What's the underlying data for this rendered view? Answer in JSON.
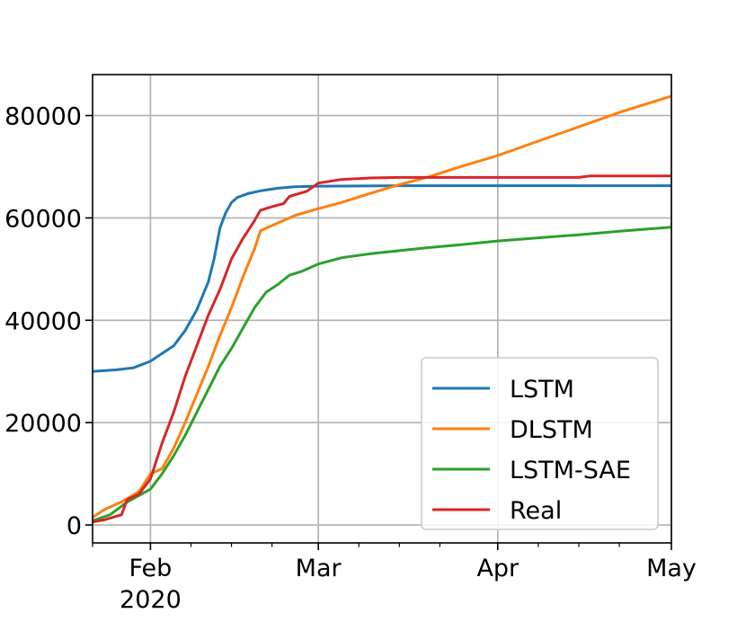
{
  "chart_data": {
    "type": "line",
    "title": "",
    "xlabel": "",
    "ylabel": "",
    "x_range": [
      "2020-01-22",
      "2020-05-01"
    ],
    "ylim": [
      -3500,
      88000
    ],
    "grid": true,
    "legend_position": "lower-right",
    "x_ticks": [
      {
        "date": "2020-02-01",
        "label": "Feb",
        "sublabel": "2020"
      },
      {
        "date": "2020-03-01",
        "label": "Mar"
      },
      {
        "date": "2020-04-01",
        "label": "Apr"
      },
      {
        "date": "2020-05-01",
        "label": "May"
      }
    ],
    "x_minor_ticks": [
      "2020-01-22",
      "2020-02-08",
      "2020-02-15",
      "2020-02-22",
      "2020-03-08",
      "2020-03-15",
      "2020-03-22",
      "2020-04-08",
      "2020-04-15",
      "2020-04-22"
    ],
    "y_ticks": [
      {
        "value": 0,
        "label": "0"
      },
      {
        "value": 20000,
        "label": "20000"
      },
      {
        "value": 40000,
        "label": "40000"
      },
      {
        "value": 60000,
        "label": "60000"
      },
      {
        "value": 80000,
        "label": "80000"
      }
    ],
    "series": [
      {
        "name": "LSTM",
        "color": "#1f77b4",
        "points": [
          [
            "2020-01-22",
            30000
          ],
          [
            "2020-01-26",
            30300
          ],
          [
            "2020-01-29",
            30700
          ],
          [
            "2020-02-01",
            32000
          ],
          [
            "2020-02-03",
            33500
          ],
          [
            "2020-02-05",
            35000
          ],
          [
            "2020-02-07",
            38000
          ],
          [
            "2020-02-09",
            42000
          ],
          [
            "2020-02-11",
            47500
          ],
          [
            "2020-02-12",
            52000
          ],
          [
            "2020-02-13",
            58000
          ],
          [
            "2020-02-14",
            61000
          ],
          [
            "2020-02-15",
            63000
          ],
          [
            "2020-02-16",
            64000
          ],
          [
            "2020-02-18",
            64800
          ],
          [
            "2020-02-20",
            65300
          ],
          [
            "2020-02-23",
            65800
          ],
          [
            "2020-02-26",
            66100
          ],
          [
            "2020-03-01",
            66200
          ],
          [
            "2020-03-15",
            66300
          ],
          [
            "2020-04-01",
            66300
          ],
          [
            "2020-04-15",
            66300
          ],
          [
            "2020-05-01",
            66300
          ]
        ]
      },
      {
        "name": "DLSTM",
        "color": "#ff7f0e",
        "points": [
          [
            "2020-01-22",
            1500
          ],
          [
            "2020-01-24",
            3000
          ],
          [
            "2020-01-27",
            4500
          ],
          [
            "2020-01-30",
            6500
          ],
          [
            "2020-02-01",
            10000
          ],
          [
            "2020-02-03",
            11000
          ],
          [
            "2020-02-05",
            15000
          ],
          [
            "2020-02-07",
            20000
          ],
          [
            "2020-02-09",
            25500
          ],
          [
            "2020-02-11",
            31000
          ],
          [
            "2020-02-13",
            37000
          ],
          [
            "2020-02-15",
            42500
          ],
          [
            "2020-02-17",
            48500
          ],
          [
            "2020-02-19",
            54000
          ],
          [
            "2020-02-20",
            57500
          ],
          [
            "2020-02-23",
            59000
          ],
          [
            "2020-02-26",
            60500
          ],
          [
            "2020-03-01",
            61800
          ],
          [
            "2020-03-05",
            63000
          ],
          [
            "2020-03-10",
            64800
          ],
          [
            "2020-03-15",
            66500
          ],
          [
            "2020-03-20",
            68000
          ],
          [
            "2020-03-25",
            69800
          ],
          [
            "2020-04-01",
            72200
          ],
          [
            "2020-04-08",
            75000
          ],
          [
            "2020-04-15",
            77800
          ],
          [
            "2020-04-22",
            80600
          ],
          [
            "2020-05-01",
            83800
          ]
        ]
      },
      {
        "name": "LSTM-SAE",
        "color": "#2ca02c",
        "points": [
          [
            "2020-01-22",
            800
          ],
          [
            "2020-01-25",
            2000
          ],
          [
            "2020-01-28",
            4500
          ],
          [
            "2020-02-01",
            7000
          ],
          [
            "2020-02-03",
            10000
          ],
          [
            "2020-02-05",
            13500
          ],
          [
            "2020-02-07",
            17500
          ],
          [
            "2020-02-09",
            22000
          ],
          [
            "2020-02-11",
            26500
          ],
          [
            "2020-02-13",
            31000
          ],
          [
            "2020-02-15",
            34500
          ],
          [
            "2020-02-17",
            38500
          ],
          [
            "2020-02-19",
            42500
          ],
          [
            "2020-02-21",
            45500
          ],
          [
            "2020-02-23",
            47000
          ],
          [
            "2020-02-25",
            48800
          ],
          [
            "2020-02-27",
            49500
          ],
          [
            "2020-03-01",
            51000
          ],
          [
            "2020-03-05",
            52200
          ],
          [
            "2020-03-10",
            53000
          ],
          [
            "2020-03-15",
            53600
          ],
          [
            "2020-03-20",
            54200
          ],
          [
            "2020-03-25",
            54700
          ],
          [
            "2020-04-01",
            55500
          ],
          [
            "2020-04-08",
            56100
          ],
          [
            "2020-04-15",
            56700
          ],
          [
            "2020-04-22",
            57400
          ],
          [
            "2020-05-01",
            58200
          ]
        ]
      },
      {
        "name": "Real",
        "color": "#d62728",
        "points": [
          [
            "2020-01-22",
            600
          ],
          [
            "2020-01-24",
            1000
          ],
          [
            "2020-01-27",
            2000
          ],
          [
            "2020-01-28",
            5000
          ],
          [
            "2020-01-30",
            6000
          ],
          [
            "2020-02-01",
            9000
          ],
          [
            "2020-02-03",
            16000
          ],
          [
            "2020-02-05",
            22000
          ],
          [
            "2020-02-07",
            29000
          ],
          [
            "2020-02-09",
            35000
          ],
          [
            "2020-02-11",
            41000
          ],
          [
            "2020-02-13",
            46000
          ],
          [
            "2020-02-15",
            52000
          ],
          [
            "2020-02-17",
            56000
          ],
          [
            "2020-02-19",
            59500
          ],
          [
            "2020-02-20",
            61500
          ],
          [
            "2020-02-22",
            62200
          ],
          [
            "2020-02-24",
            62800
          ],
          [
            "2020-02-25",
            64200
          ],
          [
            "2020-02-28",
            65200
          ],
          [
            "2020-03-01",
            66800
          ],
          [
            "2020-03-05",
            67500
          ],
          [
            "2020-03-10",
            67800
          ],
          [
            "2020-03-15",
            67900
          ],
          [
            "2020-04-01",
            67900
          ],
          [
            "2020-04-15",
            67900
          ],
          [
            "2020-04-17",
            68200
          ],
          [
            "2020-05-01",
            68200
          ]
        ]
      }
    ]
  }
}
